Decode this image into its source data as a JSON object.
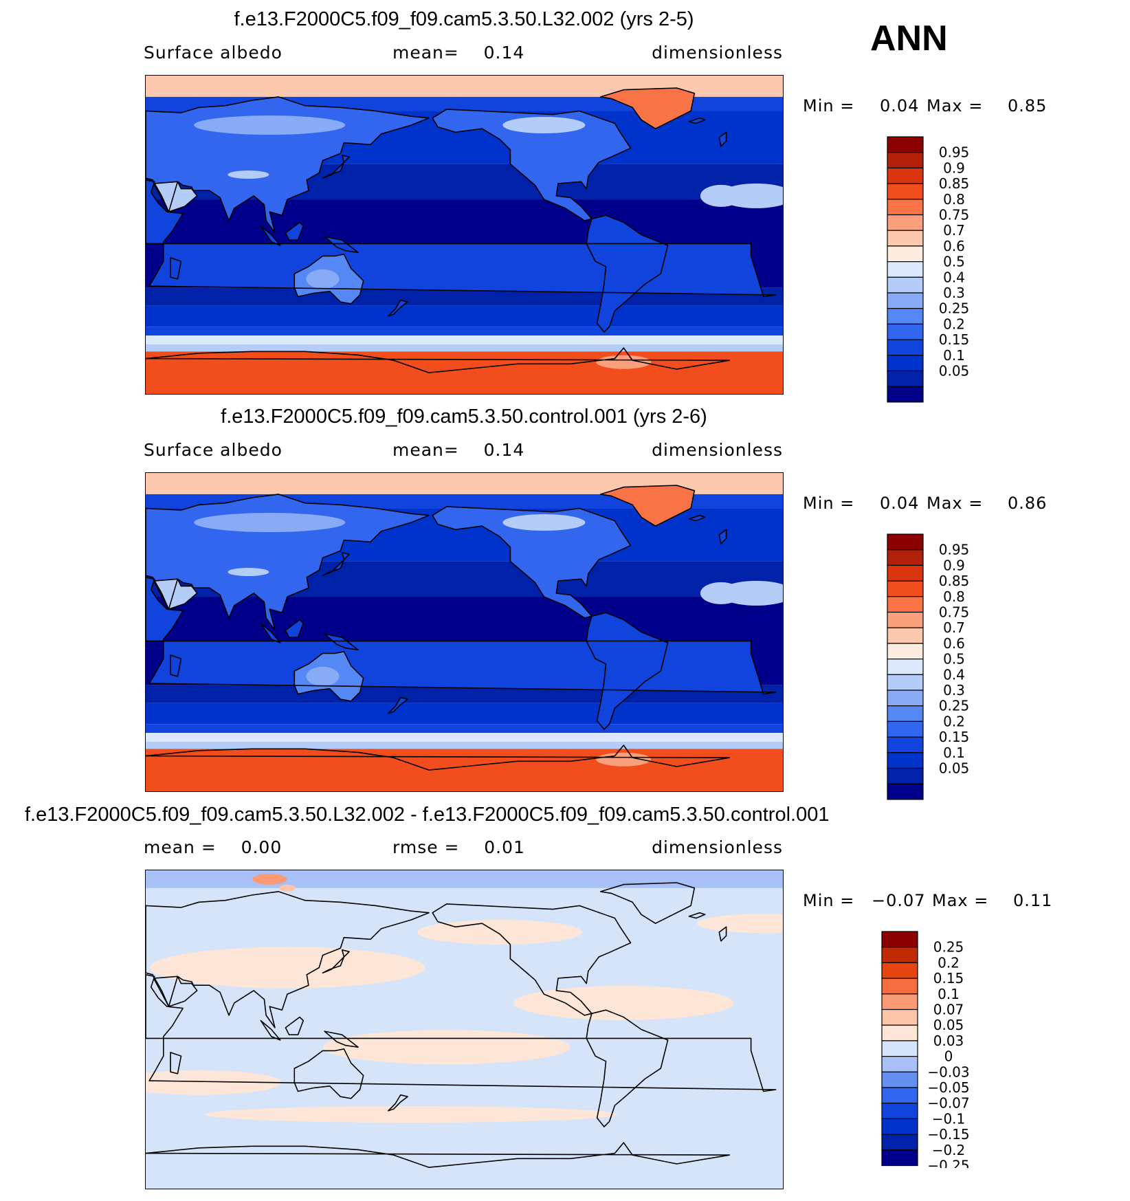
{
  "season": "ANN",
  "panels": [
    {
      "title": "f.e13.F2000C5.f09_f09.cam5.3.50.L32.002 (yrs 2-5)",
      "left_text": "Surface albedo",
      "mid_text": "mean=    0.14",
      "right_text": "dimensionless",
      "min_label": "Min =",
      "min_value": "0.04",
      "max_label": "Max =",
      "max_value": "0.85"
    },
    {
      "title": "f.e13.F2000C5.f09_f09.cam5.3.50.control.001 (yrs 2-6)",
      "left_text": "Surface albedo",
      "mid_text": "mean=    0.14",
      "right_text": "dimensionless",
      "min_label": "Min =",
      "min_value": "0.04",
      "max_label": "Max =",
      "max_value": "0.86"
    },
    {
      "title": "f.e13.F2000C5.f09_f09.cam5.3.50.L32.002 - f.e13.F2000C5.f09_f09.cam5.3.50.control.001",
      "left_text": "mean =    0.00",
      "mid_text": "rmse =    0.01",
      "right_text": "dimensionless",
      "min_label": "Min =",
      "min_value": "−0.07",
      "max_label": "Max =",
      "max_value": "0.11"
    }
  ],
  "colors": {
    "abs_levels": [
      "#00008b",
      "#0022a8",
      "#0033cc",
      "#1144dd",
      "#3366ee",
      "#5588f5",
      "#88aaf7",
      "#b4ccf8",
      "#dce8fb",
      "#fdebdf",
      "#fcc9ae",
      "#fba07c",
      "#f87446",
      "#f24d1c",
      "#db3510",
      "#b3200a",
      "#8b0000"
    ],
    "diff_levels": [
      "#00008b",
      "#0022a8",
      "#0033cc",
      "#1144dd",
      "#3366ee",
      "#6690f0",
      "#a7c0f5",
      "#d5e4f8",
      "#fde6d7",
      "#fcc4a8",
      "#fa9a74",
      "#f56c3e",
      "#e8440f",
      "#c02a05",
      "#8b0000"
    ],
    "coast": "#000000"
  },
  "chart_data": [
    {
      "type": "heatmap",
      "title": "f.e13.F2000C5.f09_f09.cam5.3.50.L32.002 (yrs 2-5)",
      "variable": "Surface albedo",
      "units": "dimensionless",
      "mean": 0.14,
      "min": 0.04,
      "max": 0.85,
      "colorbar_ticks": [
        "0.95",
        "0.9",
        "0.85",
        "0.8",
        "0.75",
        "0.7",
        "0.6",
        "0.5",
        "0.4",
        "0.3",
        "0.25",
        "0.2",
        "0.15",
        "0.1",
        "0.05"
      ],
      "legend_position": "right"
    },
    {
      "type": "heatmap",
      "title": "f.e13.F2000C5.f09_f09.cam5.3.50.control.001 (yrs 2-6)",
      "variable": "Surface albedo",
      "units": "dimensionless",
      "mean": 0.14,
      "min": 0.04,
      "max": 0.86,
      "colorbar_ticks": [
        "0.95",
        "0.9",
        "0.85",
        "0.8",
        "0.75",
        "0.7",
        "0.6",
        "0.5",
        "0.4",
        "0.3",
        "0.25",
        "0.2",
        "0.15",
        "0.1",
        "0.05"
      ],
      "legend_position": "right"
    },
    {
      "type": "heatmap",
      "title": "f.e13.F2000C5.f09_f09.cam5.3.50.L32.002 - f.e13.F2000C5.f09_f09.cam5.3.50.control.001",
      "units": "dimensionless",
      "mean": 0.0,
      "rmse": 0.01,
      "min": -0.07,
      "max": 0.11,
      "colorbar_ticks": [
        "0.25",
        "0.2",
        "0.15",
        "0.1",
        "0.07",
        "0.05",
        "0.03",
        "0",
        "−0.03",
        "−0.05",
        "−0.07",
        "−0.1",
        "−0.15",
        "−0.2",
        "−0.25"
      ],
      "legend_position": "right"
    }
  ]
}
